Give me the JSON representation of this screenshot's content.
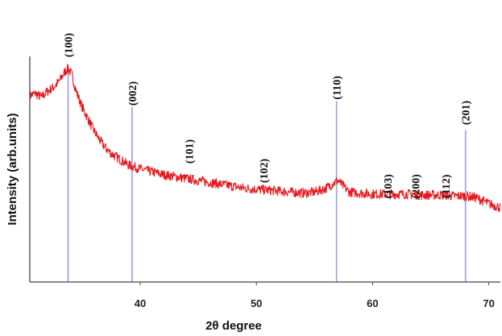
{
  "chart_data": {
    "type": "line",
    "title": "",
    "xlabel": "2θ degree",
    "ylabel": "Intensity (arb.units)",
    "xlim": [
      30.5,
      71
    ],
    "ylim": [
      0,
      100
    ],
    "x_ticks": [
      40,
      50,
      60,
      70
    ],
    "grid": false,
    "legend": "none",
    "colors": {
      "pattern": "#e8141a",
      "reference_lines": "#a7a3e8",
      "axes": "#444444"
    },
    "series": [
      {
        "type": "noisy_line",
        "x": [
          30.5,
          31.0,
          31.5,
          32.0,
          32.5,
          33.0,
          33.5,
          33.8,
          34.1,
          34.5,
          35.0,
          35.5,
          36.0,
          36.5,
          37.0,
          37.5,
          38.0,
          38.5,
          39.0,
          40.0,
          41.0,
          42.0,
          43.0,
          44.0,
          45.0,
          46.0,
          47.0,
          48.0,
          49.0,
          50.0,
          51.0,
          52.0,
          53.0,
          54.0,
          55.0,
          56.0,
          56.5,
          57.0,
          57.5,
          58.0,
          59.0,
          60.0,
          61.0,
          62.0,
          63.0,
          64.0,
          65.0,
          66.0,
          67.0,
          68.0,
          69.0,
          70.0,
          71.0
        ],
        "y": [
          84,
          85,
          83,
          86,
          88,
          91,
          96,
          98,
          95,
          86,
          78,
          72,
          66,
          61,
          57,
          54,
          52,
          50,
          48,
          46,
          44.5,
          43,
          42,
          41,
          40,
          39,
          38,
          37,
          36,
          35.5,
          35,
          34.5,
          34,
          33.5,
          34,
          36,
          38,
          40,
          37,
          34,
          33.5,
          33,
          33,
          33,
          33,
          32.5,
          32.5,
          32.5,
          32,
          32,
          31,
          28,
          26
        ],
        "noise_amplitude": 2.5
      }
    ],
    "reference_peaks": [
      {
        "label": "(100)",
        "x": 33.8,
        "line_height": 100,
        "label_y": 110
      },
      {
        "label": "(002)",
        "x": 39.3,
        "line_height": 78,
        "label_y": 85
      },
      {
        "label": "(101)",
        "x": 44.2,
        "line_height": 0,
        "label_y": 55
      },
      {
        "label": "(102)",
        "x": 50.6,
        "line_height": 0,
        "label_y": 45
      },
      {
        "label": "(110)",
        "x": 56.9,
        "line_height": 81,
        "label_y": 88
      },
      {
        "label": "(103)",
        "x": 61.3,
        "line_height": 0,
        "label_y": 37
      },
      {
        "label": "(200)",
        "x": 63.7,
        "line_height": 0,
        "label_y": 37
      },
      {
        "label": "(112)",
        "x": 66.3,
        "line_height": 0,
        "label_y": 37
      },
      {
        "label": "(201)",
        "x": 68.0,
        "line_height": 66,
        "label_y": 75
      }
    ]
  }
}
